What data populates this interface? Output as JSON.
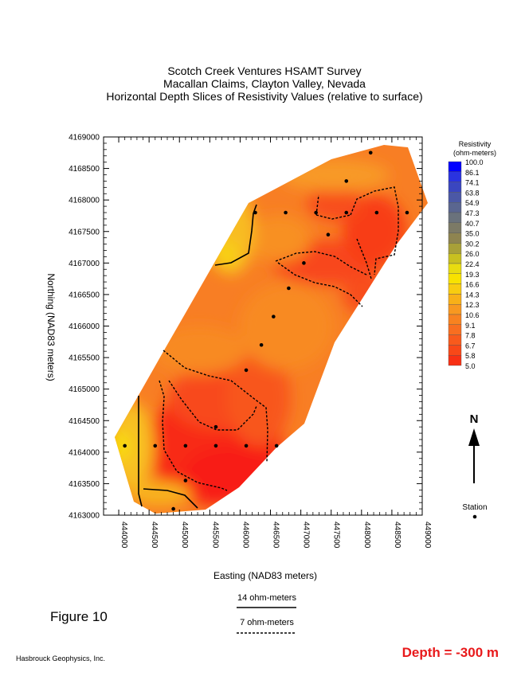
{
  "title": {
    "line1": "Scotch Creek Ventures HSAMT Survey",
    "line2": "Macallan Claims, Clayton Valley, Nevada",
    "line3": "Horizontal Depth Slices of Resistivity Values (relative to surface)"
  },
  "chart_data": {
    "type": "heatmap",
    "xlabel": "Easting (NAD83 meters)",
    "ylabel": "Northing (NAD83 meters)",
    "xlim": [
      443750,
      449000
    ],
    "ylim": [
      4163000,
      4169000
    ],
    "xticks": [
      "444000",
      "444500",
      "445000",
      "445500",
      "446000",
      "446500",
      "447000",
      "447500",
      "448000",
      "448500",
      "449000"
    ],
    "yticks": [
      "4163000",
      "4163500",
      "4164000",
      "4164500",
      "4165000",
      "4165500",
      "4166000",
      "4166500",
      "4167000",
      "4167500",
      "4168000",
      "4168500",
      "4169000"
    ],
    "colorbar": {
      "title": "Resistivity",
      "units": "(ohm-meters)",
      "levels": [
        "100.0",
        "86.1",
        "74.1",
        "63.8",
        "54.9",
        "47.3",
        "40.7",
        "35.0",
        "30.2",
        "26.0",
        "22.4",
        "19.3",
        "16.6",
        "14.3",
        "12.3",
        "10.6",
        "9.1",
        "7.8",
        "6.7",
        "5.8",
        "5.0"
      ],
      "colors": [
        "#0000ff",
        "#2a33e0",
        "#3a46c0",
        "#4b58a6",
        "#5a6690",
        "#6a727c",
        "#7c7a66",
        "#8e8450",
        "#a8a038",
        "#c8c020",
        "#e8dc10",
        "#f8e200",
        "#f8cc10",
        "#f8b018",
        "#f89820",
        "#f88220",
        "#f86e20",
        "#f85a1c",
        "#f84818",
        "#f83014",
        "#f81010"
      ]
    },
    "contours": [
      {
        "label": "14 ohm-meters",
        "style": "solid"
      },
      {
        "label": "7 ohm-meters",
        "style": "dashed"
      }
    ],
    "stations": [
      [
        444100,
        4164100
      ],
      [
        444600,
        4164100
      ],
      [
        445100,
        4164100
      ],
      [
        445600,
        4164100
      ],
      [
        446100,
        4164100
      ],
      [
        446600,
        4164100
      ],
      [
        445100,
        4163550
      ],
      [
        444900,
        4163100
      ],
      [
        445600,
        4164400
      ],
      [
        446100,
        4165300
      ],
      [
        446350,
        4165700
      ],
      [
        446550,
        4166150
      ],
      [
        446800,
        4166600
      ],
      [
        447050,
        4167000
      ],
      [
        447450,
        4167450
      ],
      [
        447750,
        4168300
      ],
      [
        448150,
        4168750
      ],
      [
        446250,
        4167800
      ],
      [
        446750,
        4167800
      ],
      [
        447250,
        4167800
      ],
      [
        447750,
        4167800
      ],
      [
        448250,
        4167800
      ],
      [
        448750,
        4167800
      ]
    ]
  },
  "north": {
    "label": "N"
  },
  "station_legend": "Station",
  "figure_label": "Figure 10",
  "company": "Hasbrouck Geophysics, Inc.",
  "depth_label": "Depth = -300 m",
  "colors": {
    "depth_text": "#e8191b"
  }
}
